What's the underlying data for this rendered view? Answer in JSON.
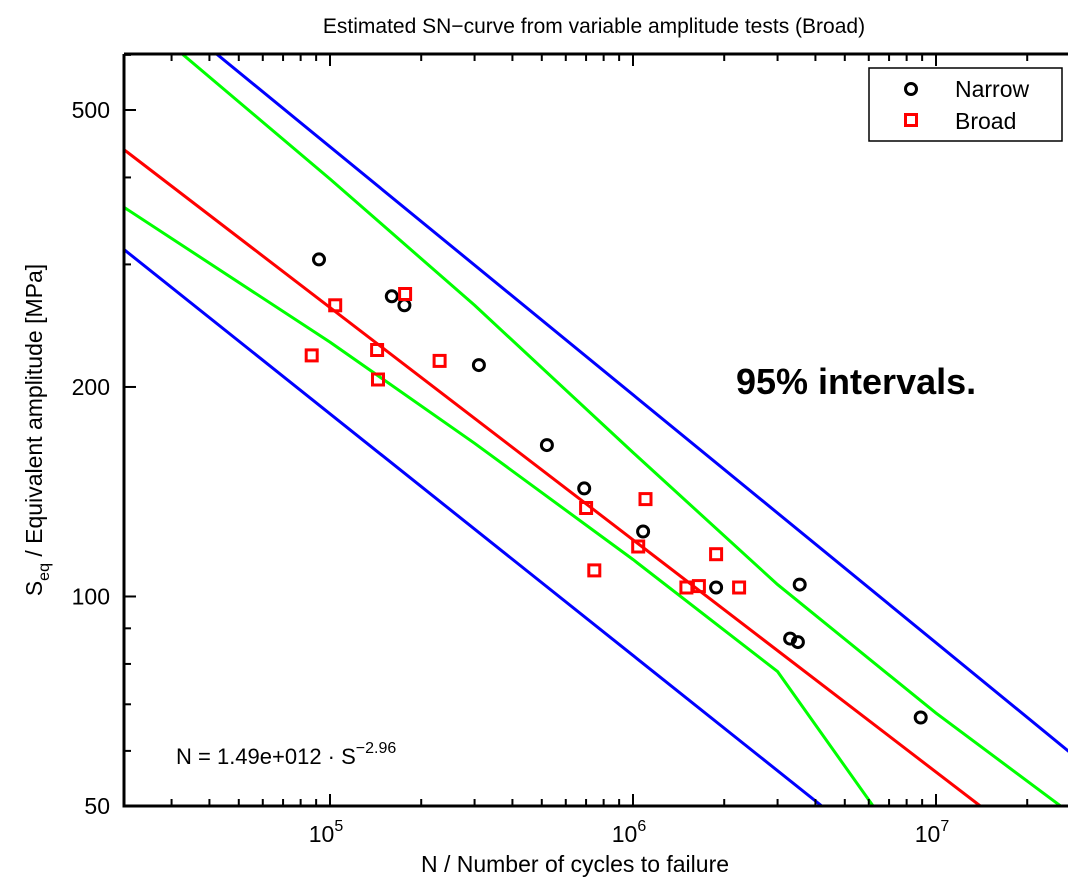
{
  "chart_data": {
    "type": "scatter",
    "title": "Estimated SN−curve from variable amplitude tests (Broad)",
    "xlabel": "N / Number of cycles to failure",
    "ylabel_main": "S",
    "ylabel_sub": "eq",
    "ylabel_rest": " / Equivalent amplitude [MPa]",
    "x_scale": "log",
    "y_scale": "log",
    "xlim": [
      20000,
      30000000
    ],
    "ylim": [
      50,
      700
    ],
    "grid": false,
    "legend_position": "top-right",
    "x_ticks": [
      {
        "value": 100000,
        "base": "10",
        "exp": "5"
      },
      {
        "value": 1000000,
        "base": "10",
        "exp": "6"
      },
      {
        "value": 10000000,
        "base": "10",
        "exp": "7"
      }
    ],
    "y_ticks": [
      {
        "value": 500,
        "label": "500"
      },
      {
        "value": 200,
        "label": "200"
      },
      {
        "value": 100,
        "label": "100"
      },
      {
        "value": 50,
        "label": "50"
      }
    ],
    "annotation": "95% intervals.",
    "equation": {
      "prefix": "N = 1.49e+012 · S",
      "exponent": "−2.96"
    },
    "series": [
      {
        "name": "Narrow",
        "marker": "circle",
        "color": "#000000",
        "points": [
          {
            "x": 92000,
            "y": 305
          },
          {
            "x": 160000,
            "y": 270
          },
          {
            "x": 176000,
            "y": 262
          },
          {
            "x": 310000,
            "y": 215
          },
          {
            "x": 520000,
            "y": 165
          },
          {
            "x": 690000,
            "y": 143
          },
          {
            "x": 1080000,
            "y": 124
          },
          {
            "x": 1880000,
            "y": 103
          },
          {
            "x": 3550000,
            "y": 104
          },
          {
            "x": 3300000,
            "y": 87
          },
          {
            "x": 3500000,
            "y": 86
          },
          {
            "x": 8900000,
            "y": 67
          }
        ]
      },
      {
        "name": "Broad",
        "marker": "square",
        "color": "#ff0000",
        "points": [
          {
            "x": 87000,
            "y": 222
          },
          {
            "x": 104000,
            "y": 262
          },
          {
            "x": 143000,
            "y": 226
          },
          {
            "x": 144000,
            "y": 205
          },
          {
            "x": 177000,
            "y": 272
          },
          {
            "x": 230000,
            "y": 218
          },
          {
            "x": 700000,
            "y": 134
          },
          {
            "x": 745000,
            "y": 109
          },
          {
            "x": 1040000,
            "y": 118
          },
          {
            "x": 1100000,
            "y": 138
          },
          {
            "x": 1500000,
            "y": 103
          },
          {
            "x": 1650000,
            "y": 103.5
          },
          {
            "x": 1880000,
            "y": 115
          },
          {
            "x": 2240000,
            "y": 103
          }
        ]
      }
    ],
    "lines": [
      {
        "role": "fit",
        "color": "#ff0000",
        "points": [
          [
            20000,
            445
          ],
          [
            14000000,
            50
          ]
        ]
      },
      {
        "role": "confidence-upper",
        "color": "#00ff00",
        "points": [
          [
            30000,
            620
          ],
          [
            100000,
            398
          ],
          [
            300000,
            262
          ],
          [
            1000000,
            161
          ],
          [
            3000000,
            104
          ],
          [
            10000000,
            68
          ],
          [
            30000000,
            47.6
          ]
        ]
      },
      {
        "role": "confidence-lower",
        "color": "#00ff00",
        "points": [
          [
            20000,
            367
          ],
          [
            100000,
            232
          ],
          [
            300000,
            166
          ],
          [
            1000000,
            113
          ],
          [
            3000000,
            78
          ],
          [
            6200000,
            50
          ]
        ]
      },
      {
        "role": "prediction-upper",
        "color": "#0000ff",
        "points": [
          [
            38000,
            625
          ],
          [
            30000000,
            58
          ]
        ]
      },
      {
        "role": "prediction-lower",
        "color": "#0000ff",
        "points": [
          [
            20000,
            320
          ],
          [
            4200000,
            50
          ]
        ]
      }
    ]
  }
}
